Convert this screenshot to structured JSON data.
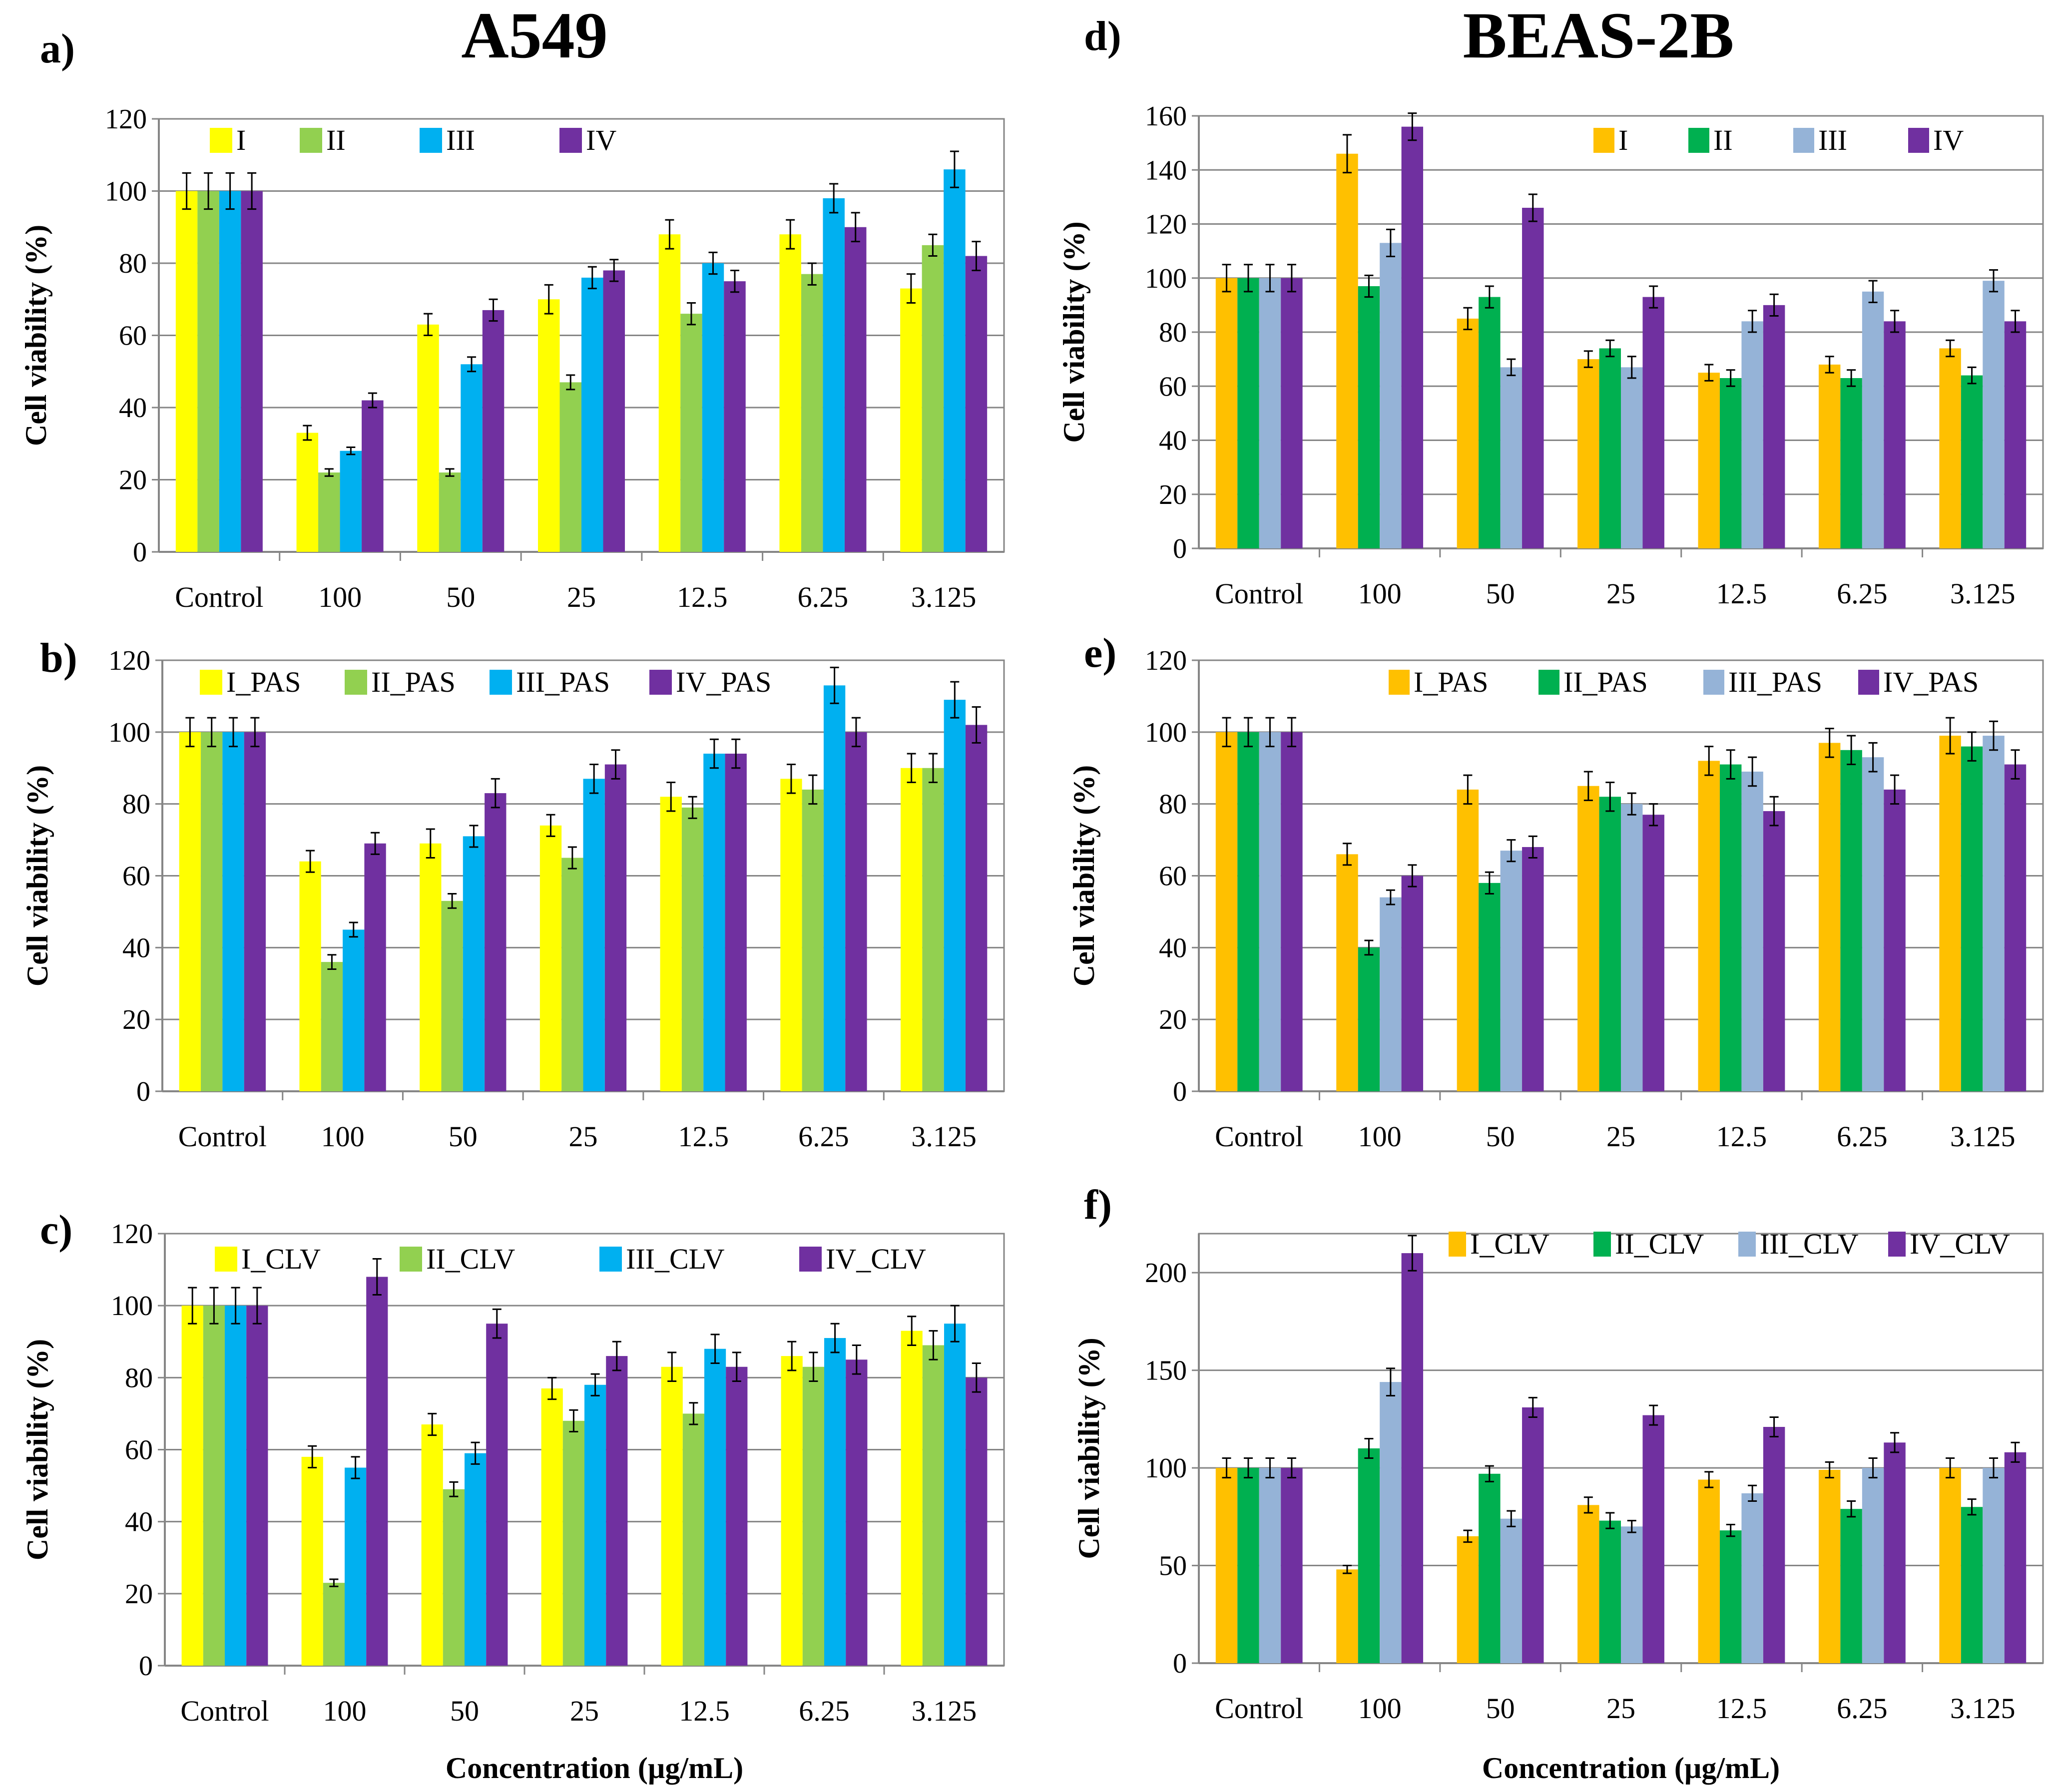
{
  "titles": {
    "left": "A549",
    "right": "BEAS-2B",
    "xlabel": "Concentration (µg/mL)"
  },
  "colors": {
    "a549": [
      "#ffff00",
      "#92d050",
      "#00b0f0",
      "#7030a0"
    ],
    "beas": [
      "#ffc000",
      "#00b050",
      "#95b3d7",
      "#7030a0"
    ]
  },
  "chart_data": [
    {
      "id": "a",
      "label": "a)",
      "type": "bar",
      "categories": [
        "Control",
        "100",
        "50",
        "25",
        "12.5",
        "6.25",
        "3.125"
      ],
      "ylabel": "Cell viability (%)",
      "xlabel": "",
      "ylim": [
        0,
        120
      ],
      "yticks": [
        0,
        20,
        40,
        60,
        80,
        100,
        120
      ],
      "grid": true,
      "palette": "a549",
      "series": [
        {
          "name": "I",
          "values": [
            100,
            33,
            63,
            70,
            88,
            88,
            73
          ],
          "errors": [
            5,
            2,
            3,
            4,
            4,
            4,
            4
          ]
        },
        {
          "name": "II",
          "values": [
            100,
            22,
            22,
            47,
            66,
            77,
            85
          ],
          "errors": [
            5,
            1,
            1,
            2,
            3,
            3,
            3
          ]
        },
        {
          "name": "III",
          "values": [
            100,
            28,
            52,
            76,
            80,
            98,
            106
          ],
          "errors": [
            5,
            1,
            2,
            3,
            3,
            4,
            5
          ]
        },
        {
          "name": "IV",
          "values": [
            100,
            42,
            67,
            78,
            75,
            90,
            82
          ],
          "errors": [
            5,
            2,
            3,
            3,
            3,
            4,
            4
          ]
        }
      ]
    },
    {
      "id": "b",
      "label": "b)",
      "type": "bar",
      "categories": [
        "Control",
        "100",
        "50",
        "25",
        "12.5",
        "6.25",
        "3.125"
      ],
      "ylabel": "Cell viability (%)",
      "xlabel": "",
      "ylim": [
        0,
        120
      ],
      "yticks": [
        0,
        20,
        40,
        60,
        80,
        100,
        120
      ],
      "grid": true,
      "palette": "a549",
      "series": [
        {
          "name": "I_PAS",
          "values": [
            100,
            64,
            69,
            74,
            82,
            87,
            90
          ],
          "errors": [
            4,
            3,
            4,
            3,
            4,
            4,
            4
          ]
        },
        {
          "name": "II_PAS",
          "values": [
            100,
            36,
            53,
            65,
            79,
            84,
            90
          ],
          "errors": [
            4,
            2,
            2,
            3,
            3,
            4,
            4
          ]
        },
        {
          "name": "III_PAS",
          "values": [
            100,
            45,
            71,
            87,
            94,
            113,
            109
          ],
          "errors": [
            4,
            2,
            3,
            4,
            4,
            5,
            5
          ]
        },
        {
          "name": "IV_PAS",
          "values": [
            100,
            69,
            83,
            91,
            94,
            100,
            102
          ],
          "errors": [
            4,
            3,
            4,
            4,
            4,
            4,
            5
          ]
        }
      ]
    },
    {
      "id": "c",
      "label": "c)",
      "type": "bar",
      "categories": [
        "Control",
        "100",
        "50",
        "25",
        "12.5",
        "6.25",
        "3.125"
      ],
      "ylabel": "Cell viability (%)",
      "xlabel": "Concentration (µg/mL)",
      "ylim": [
        0,
        120
      ],
      "yticks": [
        0,
        20,
        40,
        60,
        80,
        100,
        120
      ],
      "grid": true,
      "palette": "a549",
      "series": [
        {
          "name": "I_CLV",
          "values": [
            100,
            58,
            67,
            77,
            83,
            86,
            93
          ],
          "errors": [
            5,
            3,
            3,
            3,
            4,
            4,
            4
          ]
        },
        {
          "name": "II_CLV",
          "values": [
            100,
            23,
            49,
            68,
            70,
            83,
            89
          ],
          "errors": [
            5,
            1,
            2,
            3,
            3,
            4,
            4
          ]
        },
        {
          "name": "III_CLV",
          "values": [
            100,
            55,
            59,
            78,
            88,
            91,
            95
          ],
          "errors": [
            5,
            3,
            3,
            3,
            4,
            4,
            5
          ]
        },
        {
          "name": "IV_CLV",
          "values": [
            100,
            108,
            95,
            86,
            83,
            85,
            80
          ],
          "errors": [
            5,
            5,
            4,
            4,
            4,
            4,
            4
          ]
        }
      ]
    },
    {
      "id": "d",
      "label": "d)",
      "type": "bar",
      "categories": [
        "Control",
        "100",
        "50",
        "25",
        "12.5",
        "6.25",
        "3.125"
      ],
      "ylabel": "Cell viability (%)",
      "xlabel": "",
      "ylim": [
        0,
        160
      ],
      "yticks": [
        0,
        20,
        40,
        60,
        80,
        100,
        120,
        140,
        160
      ],
      "grid": true,
      "palette": "beas",
      "series": [
        {
          "name": "I",
          "values": [
            100,
            146,
            85,
            70,
            65,
            68,
            74
          ],
          "errors": [
            5,
            7,
            4,
            3,
            3,
            3,
            3
          ]
        },
        {
          "name": "II",
          "values": [
            100,
            97,
            93,
            74,
            63,
            63,
            64
          ],
          "errors": [
            5,
            4,
            4,
            3,
            3,
            3,
            3
          ]
        },
        {
          "name": "III",
          "values": [
            100,
            113,
            67,
            67,
            84,
            95,
            99
          ],
          "errors": [
            5,
            5,
            3,
            4,
            4,
            4,
            4
          ]
        },
        {
          "name": "IV",
          "values": [
            100,
            156,
            126,
            93,
            90,
            84,
            84
          ],
          "errors": [
            5,
            5,
            5,
            4,
            4,
            4,
            4
          ]
        }
      ]
    },
    {
      "id": "e",
      "label": "e)",
      "type": "bar",
      "categories": [
        "Control",
        "100",
        "50",
        "25",
        "12.5",
        "6.25",
        "3.125"
      ],
      "ylabel": "Cell viability (%)",
      "xlabel": "",
      "ylim": [
        0,
        120
      ],
      "yticks": [
        0,
        20,
        40,
        60,
        80,
        100,
        120
      ],
      "grid": true,
      "palette": "beas",
      "series": [
        {
          "name": "I_PAS",
          "values": [
            100,
            66,
            84,
            85,
            92,
            97,
            99
          ],
          "errors": [
            4,
            3,
            4,
            4,
            4,
            4,
            5
          ]
        },
        {
          "name": "II_PAS",
          "values": [
            100,
            40,
            58,
            82,
            91,
            95,
            96
          ],
          "errors": [
            4,
            2,
            3,
            4,
            4,
            4,
            4
          ]
        },
        {
          "name": "III_PAS",
          "values": [
            100,
            54,
            67,
            80,
            89,
            93,
            99
          ],
          "errors": [
            4,
            2,
            3,
            3,
            4,
            4,
            4
          ]
        },
        {
          "name": "IV_PAS",
          "values": [
            100,
            60,
            68,
            77,
            78,
            84,
            91
          ],
          "errors": [
            4,
            3,
            3,
            3,
            4,
            4,
            4
          ]
        }
      ]
    },
    {
      "id": "f",
      "label": "f)",
      "type": "bar",
      "categories": [
        "Control",
        "100",
        "50",
        "25",
        "12.5",
        "6.25",
        "3.125"
      ],
      "ylabel": "Cell viability (%)",
      "xlabel": "Concentration (µg/mL)",
      "ylim": [
        0,
        220
      ],
      "yticks": [
        0,
        50,
        100,
        150,
        200
      ],
      "grid": true,
      "palette": "beas",
      "series": [
        {
          "name": "I_CLV",
          "values": [
            100,
            48,
            65,
            81,
            94,
            99,
            100
          ],
          "errors": [
            5,
            2,
            3,
            4,
            4,
            4,
            5
          ]
        },
        {
          "name": "II_CLV",
          "values": [
            100,
            110,
            97,
            73,
            68,
            79,
            80
          ],
          "errors": [
            5,
            5,
            4,
            4,
            3,
            4,
            4
          ]
        },
        {
          "name": "III_CLV",
          "values": [
            100,
            144,
            74,
            70,
            87,
            100,
            100
          ],
          "errors": [
            5,
            7,
            4,
            3,
            4,
            5,
            5
          ]
        },
        {
          "name": "IV_CLV",
          "values": [
            100,
            210,
            131,
            127,
            121,
            113,
            108
          ],
          "errors": [
            5,
            9,
            5,
            5,
            5,
            5,
            5
          ]
        }
      ]
    }
  ]
}
